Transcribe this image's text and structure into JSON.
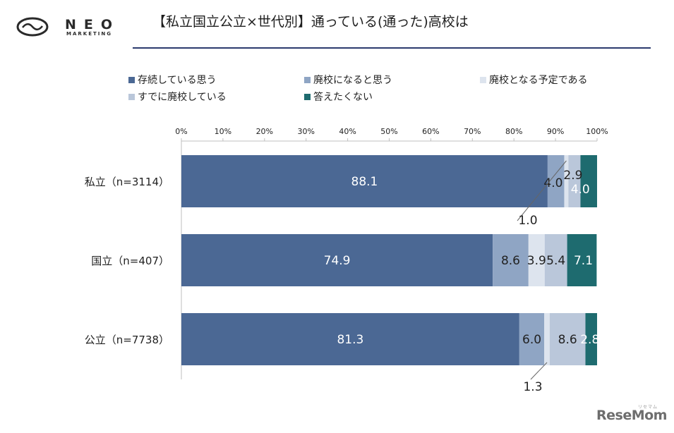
{
  "header": {
    "brand_name": "NEO",
    "brand_sub": "MARKETING",
    "title": "【私立国立公立×世代別】通っている(通った)高校は"
  },
  "watermark": {
    "text": "ReseMom",
    "sub": "リセマム"
  },
  "colors": {
    "exist": "#4b6894",
    "will_close": "#8fa5c4",
    "scheduled": "#dde4ee",
    "closed": "#bac7da",
    "no_answer": "#1e6b6f",
    "axis": "#bfbfbf",
    "rule": "#2c3b6e"
  },
  "chart_data": {
    "type": "bar",
    "orientation": "horizontal",
    "stacked": true,
    "title": "【私立国立公立×世代別】通っている(通った)高校は",
    "xlim": [
      0,
      100
    ],
    "x_ticks": [
      "0%",
      "10%",
      "20%",
      "30%",
      "40%",
      "50%",
      "60%",
      "70%",
      "80%",
      "90%",
      "100%"
    ],
    "grid": false,
    "legend_position": "top",
    "categories": [
      "私立（n=3114）",
      "国立（n=407）",
      "公立（n=7738）"
    ],
    "series": [
      {
        "name": "存続している思う",
        "values": [
          88.1,
          74.9,
          81.3
        ]
      },
      {
        "name": "廃校になると思う",
        "values": [
          4.0,
          8.6,
          6.0
        ]
      },
      {
        "name": "廃校となる予定である",
        "values": [
          1.0,
          3.9,
          1.3
        ]
      },
      {
        "name": "すでに廃校している",
        "values": [
          2.9,
          5.4,
          8.6
        ]
      },
      {
        "name": "答えたくない",
        "values": [
          4.0,
          7.1,
          2.8
        ]
      }
    ],
    "data_labels": [
      [
        "88.1",
        "4.0",
        "1.0",
        "2.9",
        "4.0"
      ],
      [
        "74.9",
        "8.6",
        "3.9",
        "5.4",
        "7.1"
      ],
      [
        "81.3",
        "6.0",
        "1.3",
        "8.6",
        "2.8"
      ]
    ]
  }
}
